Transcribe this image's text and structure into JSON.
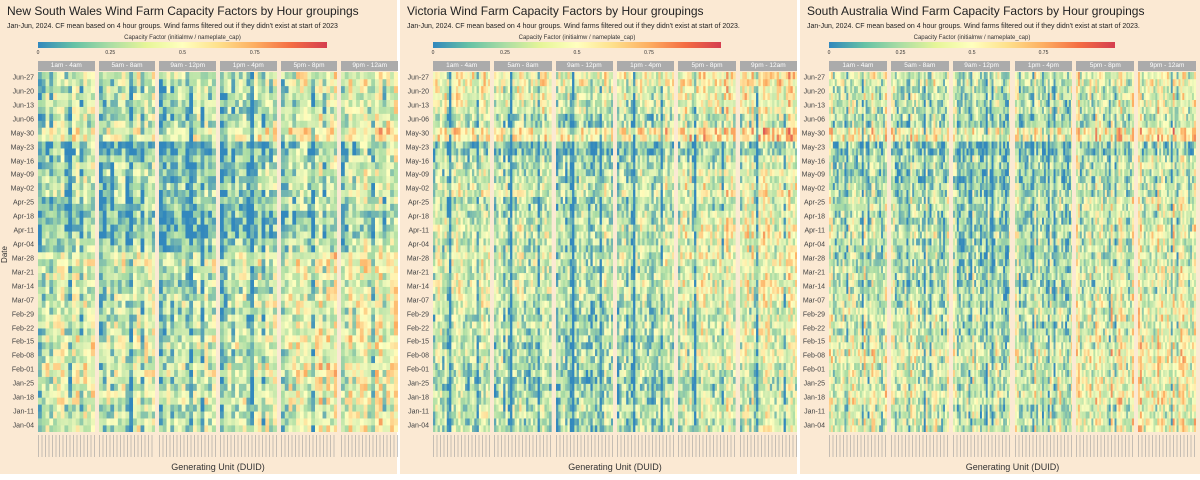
{
  "chart_data": [
    {
      "type": "heatmap",
      "title": "New South Wales Wind Farm Capacity Factors by Hour groupings",
      "subtitle": "Jan-Jun, 2024. CF mean based on 4 hour groups.  Wind farms filtered out if they didn't exist at start of 2023",
      "colorbar_label": "Capacity Factor (initialmw / nameplate_cap)",
      "colorbar_ticks": [
        "0",
        "0.25",
        "0.5",
        "0.75"
      ],
      "color_range": [
        0,
        1
      ],
      "colorscale": [
        "#3288bd",
        "#abdda4",
        "#ffffbf",
        "#fdae61",
        "#d53e4f"
      ],
      "facets": [
        "1am - 4am",
        "5am - 8am",
        "9am - 12pm",
        "1pm - 4pm",
        "5pm - 8pm",
        "9pm - 12am"
      ],
      "y_ticks": [
        "Jun-27",
        "Jun-20",
        "Jun-13",
        "Jun-06",
        "May-30",
        "May-23",
        "May-16",
        "May-09",
        "May-02",
        "Apr-25",
        "Apr-18",
        "Apr-11",
        "Apr-04",
        "Mar-28",
        "Mar-21",
        "Mar-14",
        "Mar-07",
        "Feb-29",
        "Feb-22",
        "Feb-15",
        "Feb-08",
        "Feb-01",
        "Jan-25",
        "Jan-18",
        "Jan-11",
        "Jan-04"
      ],
      "xlabel": "Generating Unit (DUID)",
      "ylabel": "Date",
      "weekly_mean_cf_jan04_to_jun27": [
        0.35,
        0.3,
        0.4,
        0.35,
        0.4,
        0.35,
        0.4,
        0.35,
        0.3,
        0.35,
        0.3,
        0.35,
        0.4,
        0.25,
        0.15,
        0.15,
        0.2,
        0.25,
        0.25,
        0.25,
        0.15,
        0.45,
        0.3,
        0.3,
        0.3,
        0.35
      ]
    },
    {
      "type": "heatmap",
      "title": "Victoria Wind Farm Capacity Factors by Hour groupings",
      "subtitle": "Jan-Jun, 2024. CF mean based on 4 hour groups.  Wind farms filtered out if they didn't exist at start of 2023.",
      "colorbar_label": "Capacity Factor (initialmw / nameplate_cap)",
      "colorbar_ticks": [
        "0",
        "0.25",
        "0.5",
        "0.75"
      ],
      "color_range": [
        0,
        1
      ],
      "colorscale": [
        "#3288bd",
        "#abdda4",
        "#ffffbf",
        "#fdae61",
        "#d53e4f"
      ],
      "facets": [
        "1am - 4am",
        "5am - 8am",
        "9am - 12pm",
        "1pm - 4pm",
        "5pm - 8pm",
        "9pm - 12am"
      ],
      "y_ticks": [
        "Jun-27",
        "Jun-20",
        "Jun-13",
        "Jun-06",
        "May-30",
        "May-23",
        "May-16",
        "May-09",
        "May-02",
        "Apr-25",
        "Apr-18",
        "Apr-11",
        "Apr-04",
        "Mar-28",
        "Mar-21",
        "Mar-14",
        "Mar-07",
        "Feb-29",
        "Feb-22",
        "Feb-15",
        "Feb-08",
        "Feb-01",
        "Jan-25",
        "Jan-18",
        "Jan-11",
        "Jan-04"
      ],
      "xlabel": "Generating Unit (DUID)",
      "weekly_mean_cf_jan04_to_jun27": [
        0.3,
        0.35,
        0.3,
        0.25,
        0.3,
        0.35,
        0.3,
        0.35,
        0.3,
        0.35,
        0.4,
        0.35,
        0.4,
        0.35,
        0.4,
        0.35,
        0.3,
        0.4,
        0.35,
        0.3,
        0.2,
        0.55,
        0.3,
        0.4,
        0.45,
        0.5
      ]
    },
    {
      "type": "heatmap",
      "title": "South Australia Wind Farm Capacity Factors by Hour groupings",
      "subtitle": "Jan-Jun, 2024. CF mean based on 4 hour groups.  Wind farms filtered out if they didn't exist at start of 2023.",
      "colorbar_label": "Capacity Factor (initialmw / nameplate_cap)",
      "colorbar_ticks": [
        "0",
        "0.25",
        "0.5",
        "0.75"
      ],
      "color_range": [
        0,
        1
      ],
      "colorscale": [
        "#3288bd",
        "#abdda4",
        "#ffffbf",
        "#fdae61",
        "#d53e4f"
      ],
      "facets": [
        "1am - 4am",
        "5am - 8am",
        "9am - 12pm",
        "1pm - 4pm",
        "5pm - 8pm",
        "9pm - 12am"
      ],
      "y_ticks": [
        "Jun-27",
        "Jun-20",
        "Jun-13",
        "Jun-06",
        "May-30",
        "May-23",
        "May-16",
        "May-09",
        "May-02",
        "Apr-25",
        "Apr-18",
        "Apr-11",
        "Apr-04",
        "Mar-28",
        "Mar-21",
        "Mar-14",
        "Mar-07",
        "Feb-29",
        "Feb-22",
        "Feb-15",
        "Feb-08",
        "Feb-01",
        "Jan-25",
        "Jan-18",
        "Jan-11",
        "Jan-04"
      ],
      "xlabel": "Generating Unit (DUID)",
      "weekly_mean_cf_jan04_to_jun27": [
        0.4,
        0.35,
        0.45,
        0.4,
        0.4,
        0.45,
        0.4,
        0.35,
        0.4,
        0.35,
        0.3,
        0.35,
        0.3,
        0.3,
        0.35,
        0.3,
        0.35,
        0.3,
        0.25,
        0.3,
        0.2,
        0.5,
        0.3,
        0.35,
        0.35,
        0.4
      ]
    }
  ]
}
